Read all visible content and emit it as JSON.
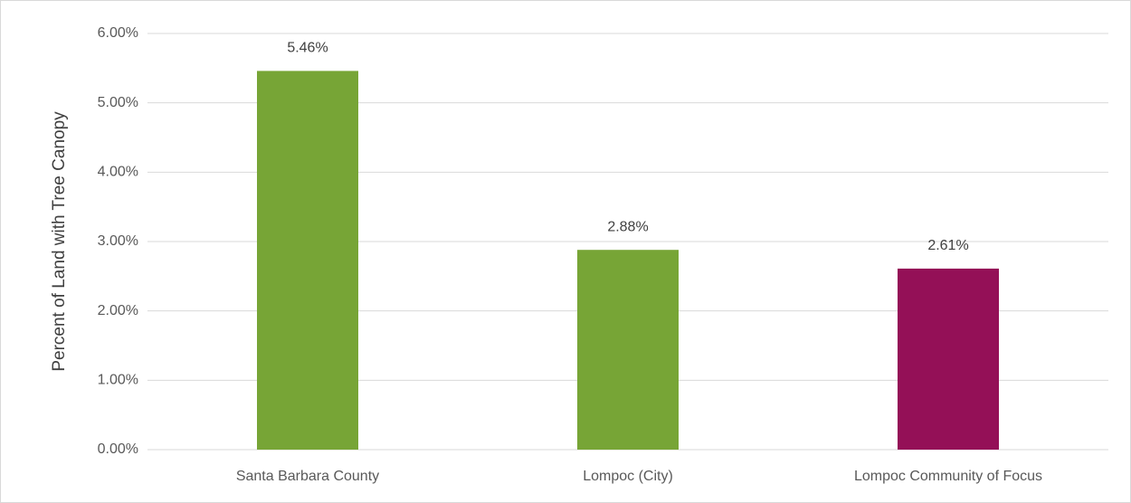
{
  "chart_data": {
    "type": "bar",
    "y_label": "Percent of Land with Tree Canopy",
    "categories": [
      "Santa Barbara County",
      "Lompoc (City)",
      "Lompoc Community of Focus"
    ],
    "values": [
      5.46,
      2.88,
      2.61
    ],
    "value_labels": [
      "5.46%",
      "2.88%",
      "2.61%"
    ],
    "colors": [
      "#77a536",
      "#77a536",
      "#941057"
    ],
    "ylim": [
      0,
      6
    ],
    "yticks": [
      {
        "value": 0,
        "label": "0.00%"
      },
      {
        "value": 1,
        "label": "1.00%"
      },
      {
        "value": 2,
        "label": "2.00%"
      },
      {
        "value": 3,
        "label": "3.00%"
      },
      {
        "value": 4,
        "label": "4.00%"
      },
      {
        "value": 5,
        "label": "5.00%"
      },
      {
        "value": 6,
        "label": "6.00%"
      }
    ],
    "grid": true
  }
}
